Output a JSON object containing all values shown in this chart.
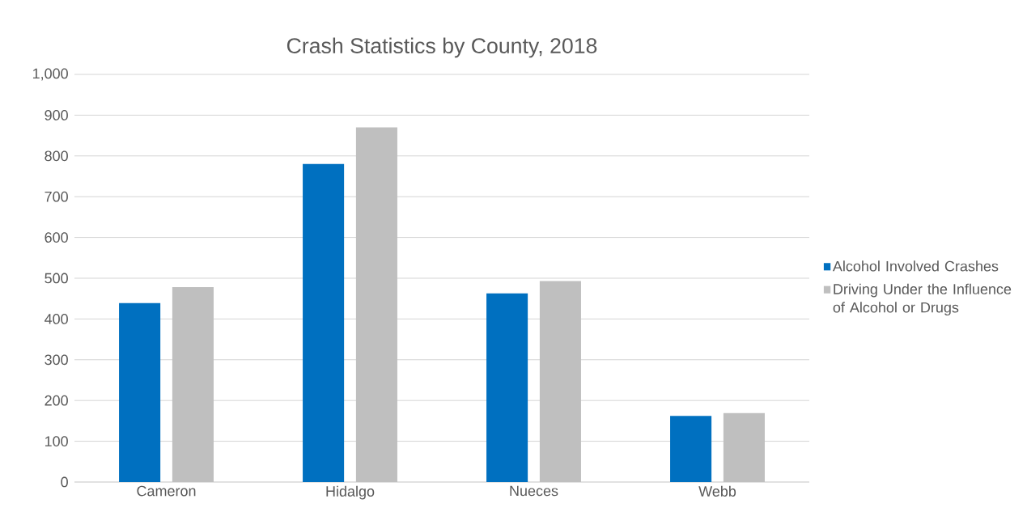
{
  "chart_data": {
    "type": "bar",
    "title": "Crash Statistics by County, 2018",
    "categories": [
      "Cameron",
      "Hidalgo",
      "Nueces",
      "Webb"
    ],
    "series": [
      {
        "name": "Alcohol Involved Crashes",
        "color": "#0070c0",
        "values": [
          439,
          780,
          463,
          162
        ]
      },
      {
        "name": "Driving Under the Influence of Alcohol or Drugs",
        "color": "#bfbfbf",
        "values": [
          478,
          870,
          493,
          169
        ]
      }
    ],
    "ylim": [
      0,
      1000
    ],
    "yticks": [
      0,
      100,
      200,
      300,
      400,
      500,
      600,
      700,
      800,
      900,
      {
        "value": 1000,
        "label": "1,000"
      }
    ],
    "grid": "y",
    "legend": "right"
  }
}
